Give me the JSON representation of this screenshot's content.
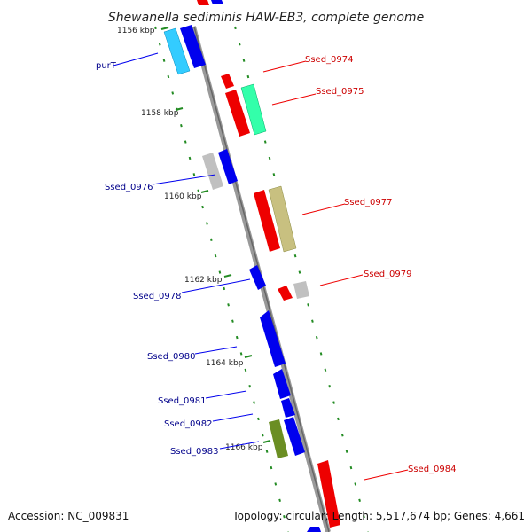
{
  "title": "Shewanella sediminis HAW-EB3, complete genome",
  "footer": {
    "accession": "Accession: NC_009831",
    "summary": "Topology: circular; Length: 5,517,674 bp; Genes: 4,661"
  },
  "ticks": [
    "1156 kbp",
    "1158 kbp",
    "1160 kbp",
    "1162 kbp",
    "1164 kbp",
    "1166 kbp"
  ],
  "genes_left": [
    "purT",
    "Ssed_0976",
    "Ssed_0978",
    "Ssed_0980",
    "Ssed_0981",
    "Ssed_0982",
    "Ssed_0983"
  ],
  "genes_right": [
    "Ssed_0974",
    "Ssed_0975",
    "Ssed_0977",
    "Ssed_0979",
    "Ssed_0984"
  ],
  "colors": {
    "backbone": "#999999",
    "forward_strand": "#0000ee",
    "reverse_strand": "#ee0000",
    "cds_cyan": "#33ccff",
    "cds_teal": "#33ffaa",
    "cds_gray": "#c0c0c0",
    "cds_olive": "#c8c080",
    "cds_darkolive": "#6b8e23",
    "tick_mark": "#228b22",
    "left_label": "#00008b",
    "right_label": "#cc0000"
  }
}
